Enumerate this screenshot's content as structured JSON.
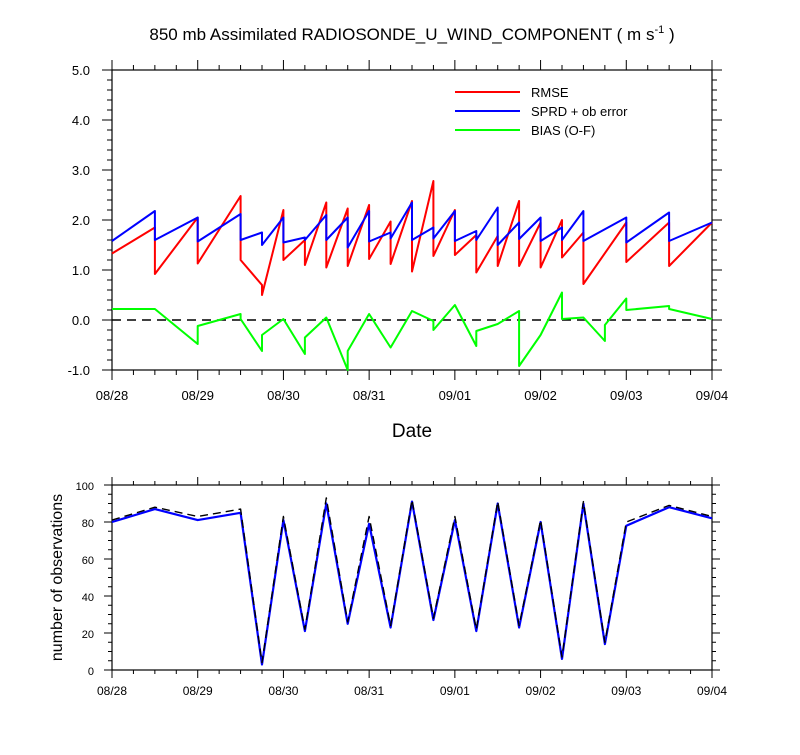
{
  "title": {
    "prefix": "850 mb Assimilated RADIOSONDE_U_WIND_COMPONENT ( m s",
    "superscript": "-1",
    "suffix": " )"
  },
  "colors": {
    "rmse": "#ff0000",
    "spread": "#0000ff",
    "bias": "#00ff00",
    "zero_line": "#000000",
    "obs_used": "#0000ff",
    "obs_possible": "#000000"
  },
  "chart_data": [
    {
      "type": "line",
      "name": "statistics-panel",
      "xlabel": "Date",
      "ylabel": "",
      "x_ticks": [
        "08/28",
        "08/29",
        "08/30",
        "08/31",
        "09/01",
        "09/02",
        "09/03",
        "09/04"
      ],
      "x_range_days": [
        0,
        7
      ],
      "ylim": [
        -1.0,
        5.0
      ],
      "y_ticks": [
        "-1.0",
        "0.0",
        "1.0",
        "2.0",
        "3.0",
        "4.0",
        "5.0"
      ],
      "y_tick_values": [
        -1,
        0,
        1,
        2,
        3,
        4,
        5
      ],
      "legend": {
        "placement": "top-right",
        "entries": [
          "RMSE",
          "SPRD + ob error",
          "BIAS (O-F)"
        ]
      },
      "series": [
        {
          "name": "RMSE",
          "x": [
            0,
            0.5,
            0.5,
            1.0,
            1.0,
            1.5,
            1.5,
            1.75,
            1.75,
            2.0,
            2.0,
            2.25,
            2.25,
            2.5,
            2.5,
            2.75,
            2.75,
            3.0,
            3.0,
            3.25,
            3.25,
            3.5,
            3.5,
            3.75,
            3.75,
            4.0,
            4.0,
            4.25,
            4.25,
            4.5,
            4.5,
            4.75,
            4.75,
            5.0,
            5.0,
            5.25,
            5.25,
            5.5,
            5.5,
            6.0,
            6.0,
            6.5,
            6.5,
            7.0
          ],
          "values": [
            1.33,
            1.85,
            0.92,
            2.05,
            1.13,
            2.48,
            1.2,
            0.7,
            0.5,
            2.2,
            1.2,
            1.6,
            1.1,
            2.35,
            1.05,
            2.23,
            1.08,
            2.3,
            1.22,
            1.97,
            1.12,
            2.38,
            0.97,
            2.78,
            1.28,
            2.2,
            1.3,
            1.7,
            0.95,
            1.68,
            1.08,
            2.38,
            1.08,
            1.95,
            1.05,
            2.0,
            1.25,
            1.75,
            0.72,
            1.95,
            1.16,
            1.95,
            1.08,
            1.95
          ]
        },
        {
          "name": "SPRD + ob error",
          "x": [
            0,
            0.5,
            0.5,
            1.0,
            1.0,
            1.5,
            1.5,
            1.75,
            1.75,
            2.0,
            2.0,
            2.25,
            2.25,
            2.5,
            2.5,
            2.75,
            2.75,
            3.0,
            3.0,
            3.25,
            3.25,
            3.5,
            3.5,
            3.75,
            3.75,
            4.0,
            4.0,
            4.25,
            4.25,
            4.5,
            4.5,
            4.75,
            4.75,
            5.0,
            5.0,
            5.25,
            5.25,
            5.5,
            5.5,
            6.0,
            6.0,
            6.5,
            6.5,
            7.0
          ],
          "values": [
            1.58,
            2.18,
            1.6,
            2.05,
            1.57,
            2.12,
            1.6,
            1.75,
            1.5,
            2.05,
            1.55,
            1.65,
            1.6,
            2.1,
            1.6,
            2.05,
            1.45,
            2.18,
            1.57,
            1.75,
            1.63,
            2.35,
            1.6,
            1.85,
            1.63,
            2.18,
            1.58,
            1.78,
            1.6,
            2.25,
            1.5,
            1.95,
            1.62,
            2.05,
            1.58,
            1.85,
            1.6,
            2.18,
            1.58,
            2.05,
            1.55,
            2.15,
            1.58,
            1.95
          ]
        },
        {
          "name": "BIAS (O-F)",
          "x": [
            0,
            0.5,
            1.0,
            1.0,
            1.5,
            1.5,
            1.75,
            1.75,
            2.0,
            2.25,
            2.25,
            2.5,
            2.75,
            2.75,
            3.0,
            3.25,
            3.5,
            3.75,
            3.75,
            4.0,
            4.25,
            4.25,
            4.5,
            4.75,
            4.75,
            5.0,
            5.25,
            5.25,
            5.5,
            5.75,
            5.75,
            6.0,
            6.0,
            6.5,
            6.5,
            7.0
          ],
          "values": [
            0.22,
            0.22,
            -0.48,
            -0.12,
            0.12,
            0.02,
            -0.62,
            -0.3,
            0.02,
            -0.68,
            -0.35,
            0.05,
            -1.0,
            -0.62,
            0.12,
            -0.55,
            0.18,
            -0.02,
            -0.2,
            0.3,
            -0.52,
            -0.22,
            -0.08,
            0.18,
            -0.92,
            -0.3,
            0.55,
            0.02,
            0.05,
            -0.42,
            -0.1,
            0.43,
            0.2,
            0.28,
            0.22,
            0.02
          ]
        }
      ]
    },
    {
      "type": "line",
      "name": "observations-panel",
      "xlabel": "",
      "ylabel": "number of observations",
      "x_ticks": [
        "08/28",
        "08/29",
        "08/30",
        "08/31",
        "09/01",
        "09/02",
        "09/03",
        "09/04"
      ],
      "x_range_days": [
        0,
        7
      ],
      "ylim": [
        0,
        100
      ],
      "y_ticks": [
        "0",
        "20",
        "40",
        "60",
        "80",
        "100"
      ],
      "y_tick_values": [
        0,
        20,
        40,
        60,
        80,
        100
      ],
      "series": [
        {
          "style": "solid",
          "x": [
            0,
            0.5,
            1.0,
            1.5,
            1.75,
            2.0,
            2.25,
            2.5,
            2.75,
            3.0,
            3.25,
            3.5,
            3.75,
            4.0,
            4.25,
            4.5,
            4.75,
            5.0,
            5.25,
            5.5,
            5.75,
            6.0,
            6.5,
            7.0
          ],
          "values": [
            80,
            87,
            81,
            85,
            3,
            81,
            21,
            90,
            25,
            79,
            23,
            91,
            27,
            81,
            21,
            90,
            23,
            80,
            6,
            90,
            14,
            78,
            88,
            82
          ]
        },
        {
          "style": "dashed",
          "x": [
            0,
            0.5,
            1.0,
            1.5,
            1.75,
            2.0,
            2.25,
            2.5,
            2.75,
            3.0,
            3.25,
            3.5,
            3.75,
            4.0,
            4.25,
            4.5,
            4.75,
            5.0,
            5.25,
            5.5,
            5.75,
            6.0,
            6.5,
            7.0
          ],
          "values": [
            81,
            88,
            83,
            87,
            4,
            83,
            22,
            93,
            26,
            83,
            24,
            92,
            28,
            83,
            22,
            91,
            24,
            81,
            7,
            91,
            15,
            80,
            89,
            83
          ]
        }
      ]
    }
  ]
}
